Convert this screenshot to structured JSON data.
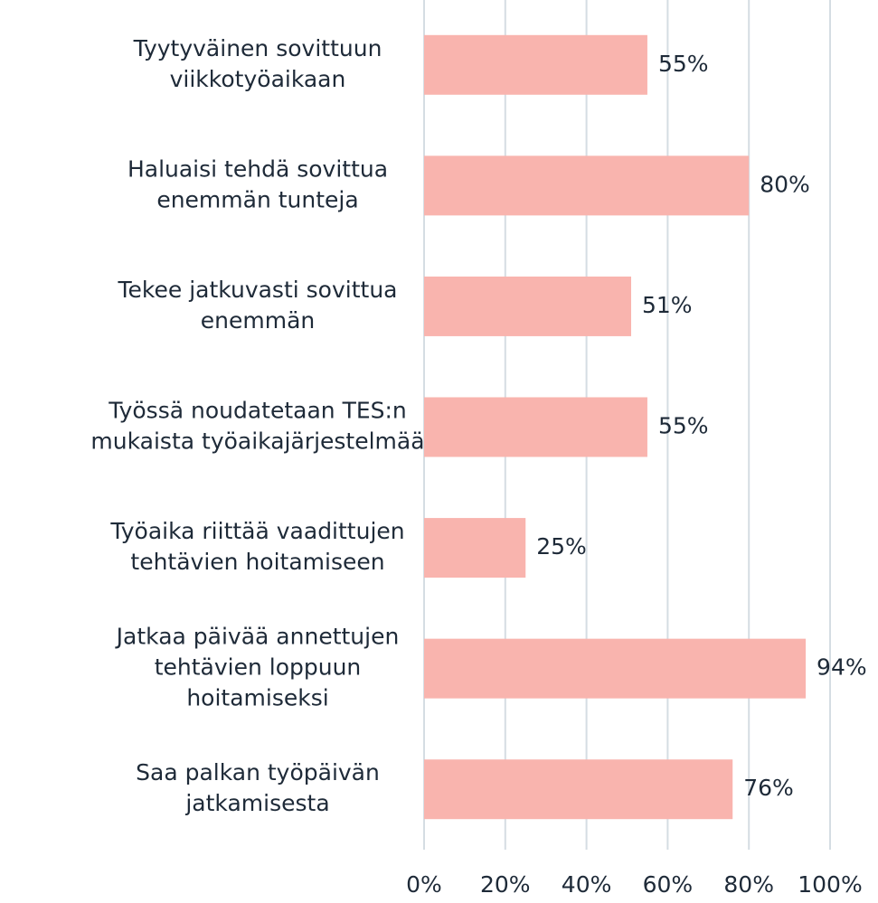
{
  "chart_data": {
    "type": "barh",
    "categories": [
      "Tyytyväinen sovittuun\nviikkotyöaikaan",
      "Haluaisi tehdä sovittua\nenemmän tunteja",
      "Tekee jatkuvasti sovittua\nenemmän",
      "Työssä noudatetaan TES:n\nmukaista työaikajärjestelmää",
      "Työaika riittää vaadittujen\ntehtävien hoitamiseen",
      "Jatkaa päivää annettujen\ntehtävien loppuun\nhoitamiseksi",
      "Saa palkan työpäivän\njatkamisesta"
    ],
    "values": [
      55,
      80,
      51,
      55,
      25,
      94,
      76
    ],
    "value_labels": [
      "55%",
      "80%",
      "51%",
      "55%",
      "25%",
      "94%",
      "76%"
    ],
    "color": "#f9b4ae",
    "xlim": [
      0,
      100
    ],
    "xticks": [
      {
        "value": 0,
        "label": "0%"
      },
      {
        "value": 20,
        "label": "20%"
      },
      {
        "value": 40,
        "label": "40%"
      },
      {
        "value": 60,
        "label": "60%"
      },
      {
        "value": 80,
        "label": "80%"
      },
      {
        "value": 100,
        "label": "100%"
      }
    ],
    "grid": true
  }
}
